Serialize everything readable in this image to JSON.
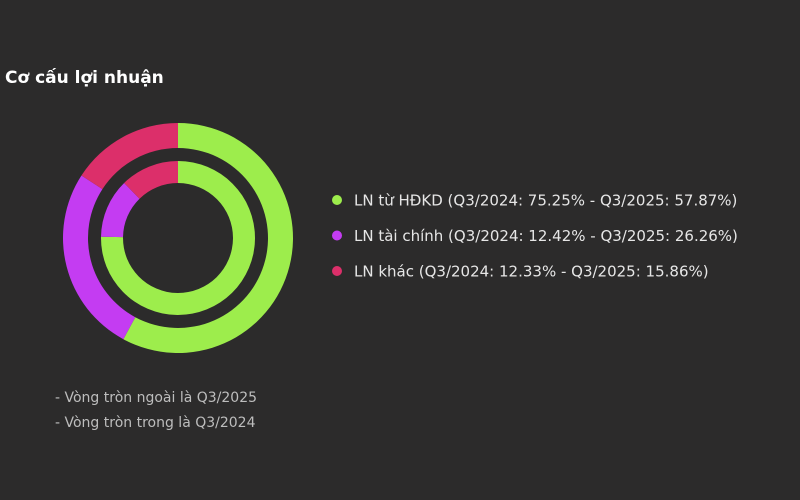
{
  "chart_data": {
    "type": "nested-donut",
    "title": "Cơ cấu lợi nhuận",
    "categories": [
      "LN từ HĐKD (Q3/2024: 75.25% - Q3/2025: 57.87%)",
      "LN tài chính (Q3/2024: 12.42% - Q3/2025: 26.26%)",
      "LN khác (Q3/2024: 12.33% - Q3/2025: 15.86%)"
    ],
    "colors": [
      "#9ded4c",
      "#c43cf2",
      "#dc2f6a"
    ],
    "series": [
      {
        "ring": "outer",
        "values": [
          57.87,
          26.26,
          15.86
        ]
      },
      {
        "ring": "inner",
        "values": [
          75.25,
          12.42,
          12.33
        ]
      }
    ],
    "notes": [
      "- Vòng tròn ngoài là Q3/2025",
      "- Vòng tròn trong là Q3/2024"
    ]
  }
}
